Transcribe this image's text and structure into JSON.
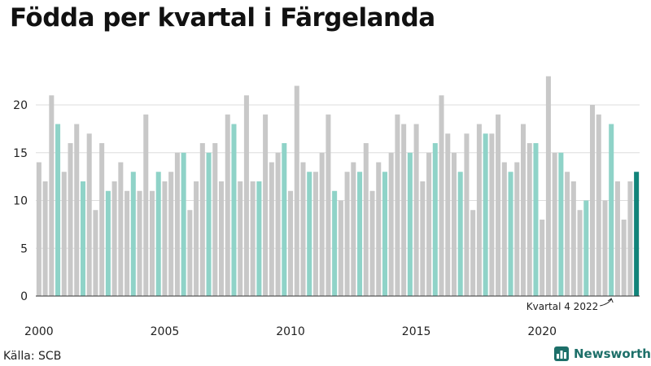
{
  "title": "Födda per kvartal i Färgelanda",
  "source": "Källa: SCB",
  "brand": {
    "name": "Newsworthy",
    "icon": "bar-chart-logo-icon",
    "color": "#1d6f69"
  },
  "colors": {
    "bar": "#c8c8c8",
    "q4": "#8fd3c8",
    "latest": "#11847a",
    "grid": "#dddddd",
    "axis": "#333333"
  },
  "chart_data": {
    "type": "bar",
    "title": "Födda per kvartal i Färgelanda",
    "xlabel": "",
    "ylabel": "",
    "ylim": [
      0,
      24
    ],
    "yticks": [
      0,
      5,
      10,
      15,
      20
    ],
    "xticks": [
      "2000",
      "2005",
      "2010",
      "2015",
      "2020"
    ],
    "grid": true,
    "start_year": 2000,
    "highlight": "fourth quarter bars (teal)",
    "annotation": "Kvartal 4 2022",
    "values": [
      14,
      12,
      21,
      18,
      13,
      16,
      18,
      12,
      17,
      9,
      16,
      11,
      12,
      14,
      11,
      13,
      11,
      19,
      11,
      13,
      12,
      13,
      15,
      15,
      9,
      12,
      16,
      15,
      16,
      12,
      19,
      18,
      12,
      21,
      12,
      12,
      19,
      14,
      15,
      16,
      11,
      22,
      14,
      13,
      13,
      15,
      19,
      11,
      10,
      13,
      14,
      13,
      16,
      11,
      14,
      13,
      15,
      19,
      18,
      15,
      18,
      12,
      15,
      16,
      21,
      17,
      15,
      13,
      17,
      9,
      18,
      17,
      17,
      19,
      14,
      13,
      14,
      18,
      16,
      16,
      8,
      23,
      15,
      15,
      13,
      12,
      9,
      10,
      20,
      19,
      10,
      18,
      12,
      8,
      12,
      13
    ]
  }
}
